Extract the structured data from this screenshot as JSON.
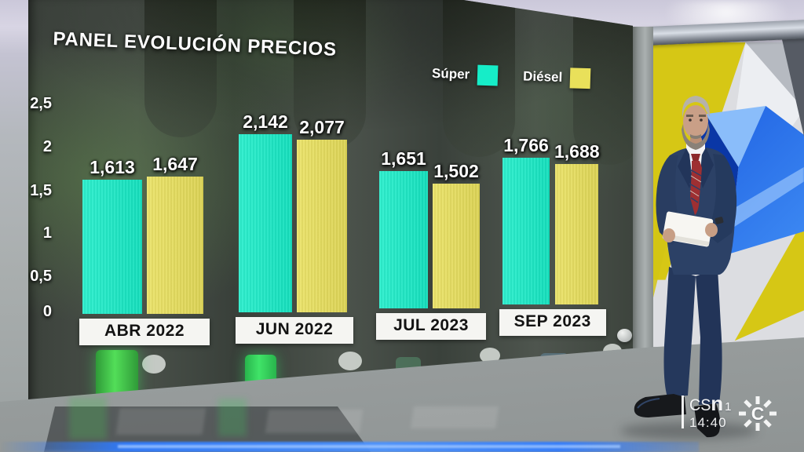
{
  "chart_data": {
    "type": "bar",
    "title": "PANEL EVOLUCIÓN PRECIOS",
    "categories": [
      "ABR 2022",
      "JUN 2022",
      "JUL 2023",
      "SEP 2023"
    ],
    "series": [
      {
        "name": "Súper",
        "color": "#16edc8",
        "values": [
          1.613,
          2.142,
          1.651,
          1.766
        ],
        "labels": [
          "1,613",
          "2,142",
          "1,651",
          "1,766"
        ]
      },
      {
        "name": "Diésel",
        "color": "#e9e05a",
        "values": [
          1.647,
          2.077,
          1.502,
          1.688
        ],
        "labels": [
          "1,647",
          "2,077",
          "1,502",
          "1,688"
        ]
      }
    ],
    "y_axis": {
      "tick_labels": [
        "2,5",
        "2",
        "1,5",
        "1",
        "0,5",
        "0"
      ],
      "min": 0,
      "max": 2.5
    },
    "grid": false,
    "legend_position": "top-right"
  },
  "bug": {
    "channel": "CS",
    "n": "n",
    "number": "1",
    "time": "14:40"
  }
}
